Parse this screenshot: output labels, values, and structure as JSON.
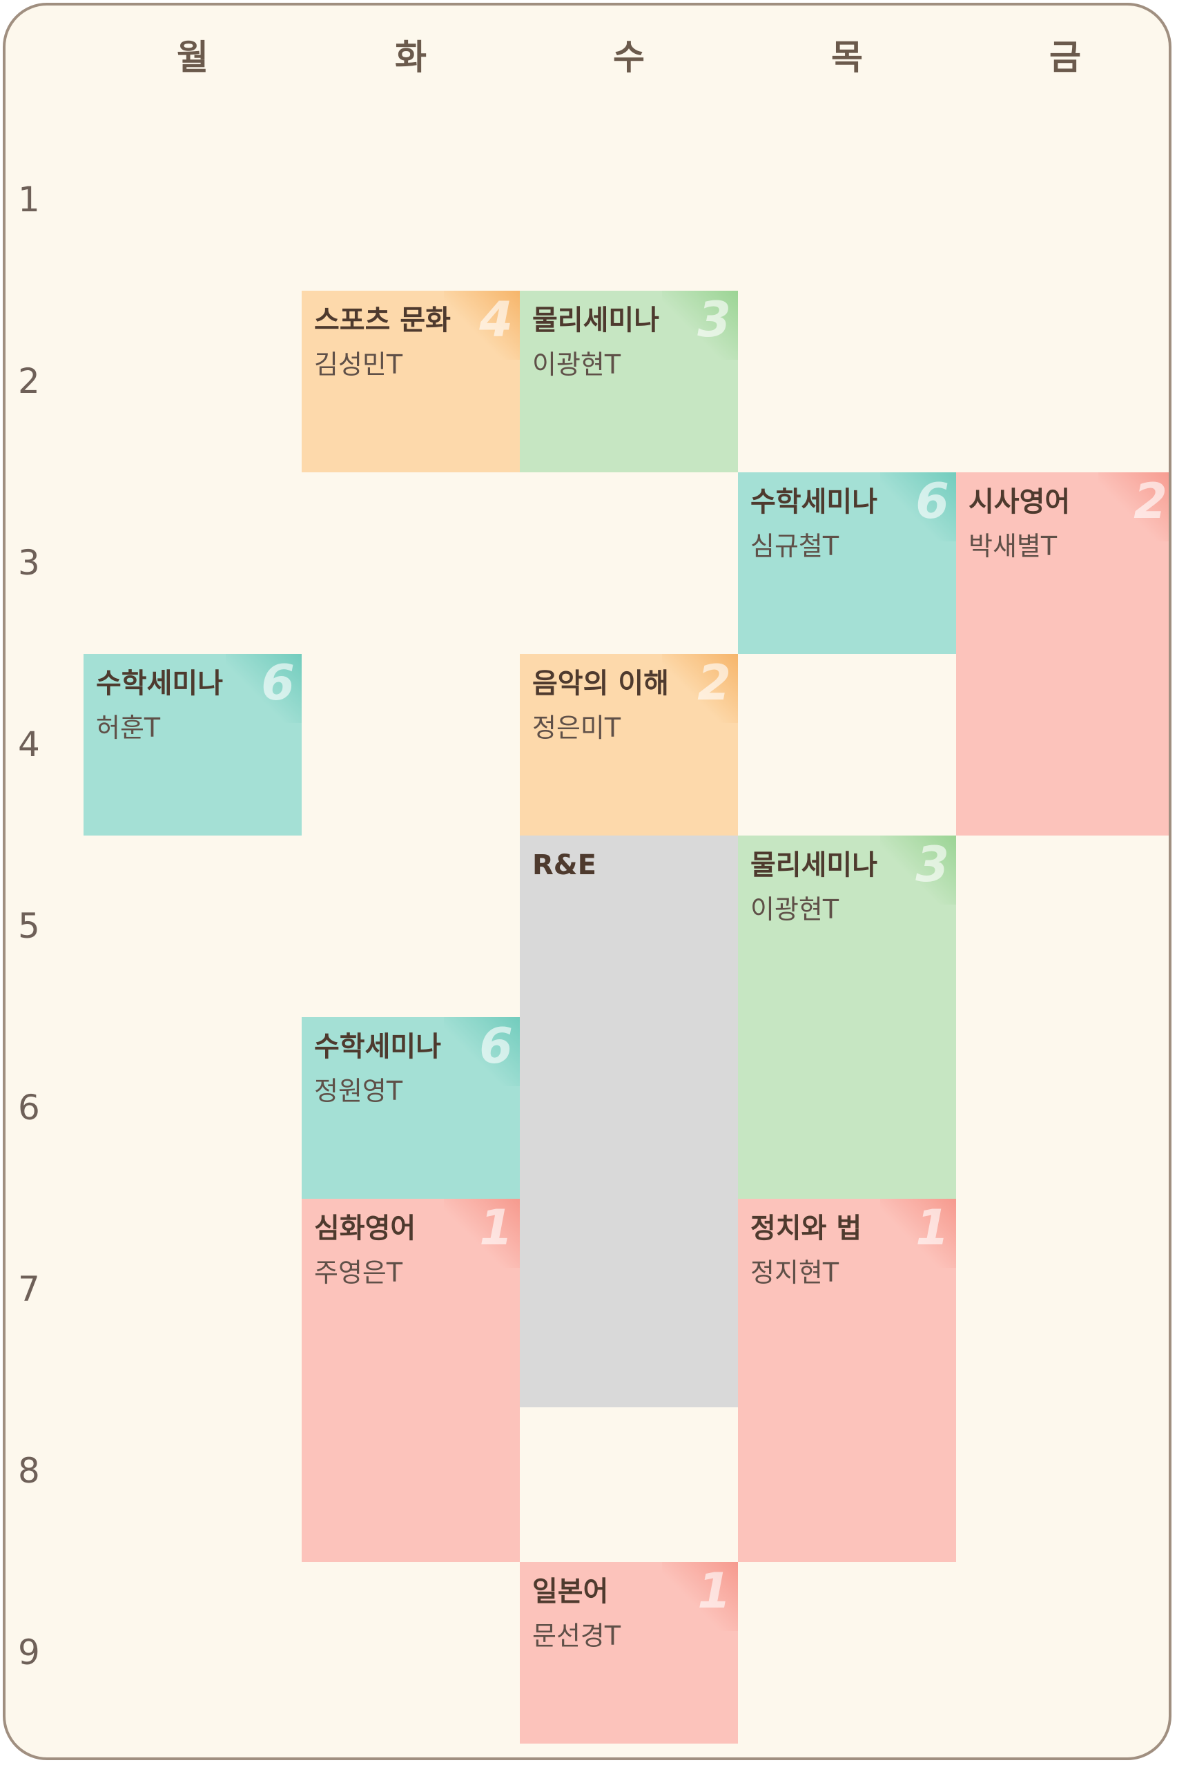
{
  "days": [
    "월",
    "화",
    "수",
    "목",
    "금"
  ],
  "periods": [
    "1",
    "2",
    "3",
    "4",
    "5",
    "6",
    "7",
    "8",
    "9"
  ],
  "classes": [
    {
      "subject": "스포츠 문화",
      "teacher": "김성민T",
      "number": "4",
      "day": "화",
      "start": 2,
      "end": 2,
      "color": "orange"
    },
    {
      "subject": "물리세미나",
      "teacher": "이광현T",
      "number": "3",
      "day": "수",
      "start": 2,
      "end": 2,
      "color": "green"
    },
    {
      "subject": "수학세미나",
      "teacher": "심규철T",
      "number": "6",
      "day": "목",
      "start": 3,
      "end": 3,
      "color": "teal"
    },
    {
      "subject": "시사영어",
      "teacher": "박새별T",
      "number": "2",
      "day": "금",
      "start": 3,
      "end": 4,
      "color": "pink"
    },
    {
      "subject": "수학세미나",
      "teacher": "허훈T",
      "number": "6",
      "day": "월",
      "start": 4,
      "end": 4,
      "color": "teal"
    },
    {
      "subject": "음악의 이해",
      "teacher": "정은미T",
      "number": "2",
      "day": "수",
      "start": 4,
      "end": 4,
      "color": "orange"
    },
    {
      "subject": "R&E",
      "teacher": "",
      "number": "",
      "day": "수",
      "start": 5,
      "end": 7.15,
      "color": "gray"
    },
    {
      "subject": "물리세미나",
      "teacher": "이광현T",
      "number": "3",
      "day": "목",
      "start": 5,
      "end": 6,
      "color": "green"
    },
    {
      "subject": "수학세미나",
      "teacher": "정원영T",
      "number": "6",
      "day": "화",
      "start": 6,
      "end": 6,
      "color": "teal"
    },
    {
      "subject": "심화영어",
      "teacher": "주영은T",
      "number": "1",
      "day": "화",
      "start": 7,
      "end": 8,
      "color": "pink"
    },
    {
      "subject": "정치와 법",
      "teacher": "정지현T",
      "number": "1",
      "day": "목",
      "start": 7,
      "end": 8,
      "color": "pink"
    },
    {
      "subject": "일본어",
      "teacher": "문선경T",
      "number": "1",
      "day": "수",
      "start": 9,
      "end": 9,
      "color": "pink"
    }
  ]
}
